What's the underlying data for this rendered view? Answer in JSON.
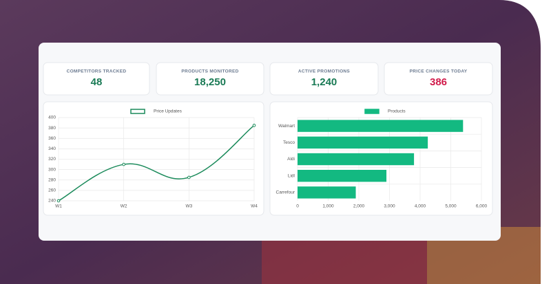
{
  "kpis": [
    {
      "label": "COMPETITORS TRACKED",
      "value": "48"
    },
    {
      "label": "PRODUCTS MONITORED",
      "value": "18,250"
    },
    {
      "label": "ACTIVE PROMOTIONS",
      "value": "1,240"
    },
    {
      "label": "PRICE CHANGES TODAY",
      "value": "386"
    }
  ],
  "chart_data": [
    {
      "type": "line",
      "categories": [
        "W1",
        "W2",
        "W3",
        "W4"
      ],
      "series": [
        {
          "name": "Price Updates",
          "color": "#1a8a5a",
          "values": [
            240,
            310,
            285,
            385
          ]
        }
      ],
      "ylim": [
        240,
        400
      ],
      "yticks": [
        240,
        260,
        280,
        300,
        320,
        340,
        360,
        380,
        400
      ],
      "grid": true,
      "legend": "top"
    },
    {
      "type": "barh",
      "categories": [
        "Walmart",
        "Tesco",
        "Aldi",
        "Lidl",
        "Carrefour"
      ],
      "series": [
        {
          "name": "Products",
          "color": "#13b981",
          "values": [
            5400,
            4250,
            3800,
            2900,
            1900
          ]
        }
      ],
      "xlim": [
        0,
        6000
      ],
      "xticks": [
        0,
        {
          "value": 1000,
          "label": "1,000"
        },
        {
          "value": 2000,
          "label": "2,000"
        },
        {
          "value": 3000,
          "label": "3,000"
        },
        {
          "value": 4000,
          "label": "4,000"
        },
        {
          "value": 5000,
          "label": "5,000"
        },
        {
          "value": 6000,
          "label": "6,000"
        }
      ],
      "grid": true,
      "legend": "top"
    }
  ]
}
